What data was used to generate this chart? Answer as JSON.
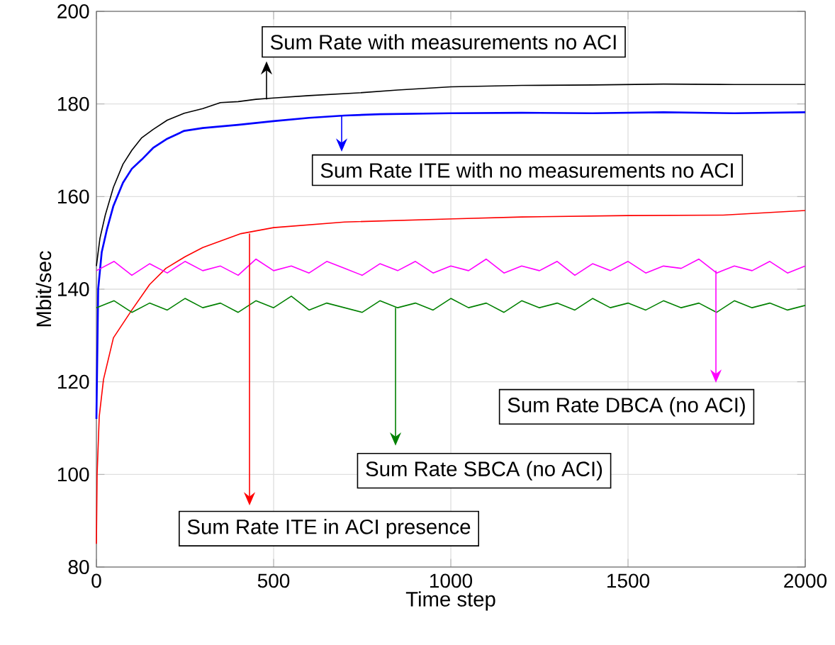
{
  "chart_data": {
    "type": "line",
    "xlabel": "Time step",
    "ylabel": "Mbit/sec",
    "xlim": [
      0,
      2000
    ],
    "ylim": [
      80,
      200
    ],
    "xticks": [
      0,
      500,
      1000,
      1500,
      2000
    ],
    "yticks": [
      80,
      100,
      120,
      140,
      160,
      180,
      200
    ],
    "grid": true,
    "series": [
      {
        "color": "#000000",
        "x": [
          0,
          10,
          25,
          48,
          75,
          100,
          128,
          160,
          200,
          248,
          300,
          350,
          400,
          450,
          500,
          600,
          740,
          850,
          1000,
          1200,
          1400,
          1600,
          1800,
          2000
        ],
        "values": [
          145,
          151,
          156,
          162,
          167,
          170,
          172.7,
          174.5,
          176.5,
          178,
          179,
          180.3,
          180.5,
          181,
          181.3,
          181.8,
          182.4,
          183,
          183.7,
          184,
          184.1,
          184.3,
          184.2,
          184.2
        ]
      },
      {
        "color": "#0000ff",
        "x": [
          0,
          5,
          15,
          30,
          48,
          75,
          100,
          128,
          160,
          200,
          248,
          300,
          400,
          500,
          600,
          700,
          800,
          1000,
          1200,
          1400,
          1600,
          1800,
          2000
        ],
        "values": [
          112,
          140,
          148,
          153,
          158,
          163,
          166,
          168,
          170.5,
          172.5,
          174.2,
          174.8,
          175.5,
          176.3,
          177,
          177.5,
          177.8,
          178,
          178.1,
          178,
          178.2,
          178,
          178.2
        ]
      },
      {
        "color": "#ff0000",
        "x": [
          0,
          2,
          8,
          20,
          48,
          100,
          150,
          196,
          250,
          300,
          408,
          500,
          700,
          1008,
          1200,
          1500,
          1768,
          2000
        ],
        "values": [
          85,
          100,
          112.5,
          120.5,
          129.5,
          135.5,
          141,
          144.5,
          147,
          149,
          152,
          153.3,
          154.5,
          155.2,
          155.6,
          155.9,
          156,
          157
        ]
      },
      {
        "color": "#ff00ff",
        "x": [
          0,
          50,
          100,
          150,
          200,
          250,
          300,
          350,
          400,
          450,
          500,
          550,
          600,
          650,
          700,
          750,
          800,
          850,
          900,
          950,
          1000,
          1050,
          1100,
          1150,
          1200,
          1250,
          1300,
          1350,
          1400,
          1450,
          1500,
          1550,
          1600,
          1650,
          1700,
          1750,
          1800,
          1850,
          1900,
          1950,
          2000
        ],
        "values": [
          144,
          146,
          143,
          145.5,
          143.5,
          146,
          144,
          145,
          143,
          146.5,
          144,
          145,
          143.5,
          146,
          144.5,
          143,
          145.5,
          144,
          146,
          143.5,
          145,
          144,
          146.5,
          143.5,
          145,
          144,
          146,
          143,
          145.5,
          144,
          146,
          143.5,
          145,
          144.5,
          146.5,
          143.5,
          145,
          144,
          146,
          143.5,
          145
        ]
      },
      {
        "color": "#008000",
        "x": [
          0,
          50,
          100,
          150,
          200,
          250,
          300,
          350,
          400,
          450,
          500,
          550,
          600,
          650,
          700,
          750,
          800,
          850,
          900,
          950,
          1000,
          1050,
          1100,
          1150,
          1200,
          1250,
          1300,
          1350,
          1400,
          1450,
          1500,
          1550,
          1600,
          1650,
          1700,
          1750,
          1800,
          1850,
          1900,
          1950,
          2000
        ],
        "values": [
          136,
          137.5,
          135,
          137,
          135.5,
          138,
          136,
          137,
          135,
          137.5,
          136,
          138.5,
          135.5,
          137,
          136,
          135,
          137.5,
          136,
          137,
          135.5,
          138,
          136,
          137,
          135,
          137.5,
          136,
          137,
          135.5,
          138,
          136,
          137,
          135.5,
          137.5,
          136,
          137,
          135,
          137.5,
          136,
          137,
          135.5,
          136.5
        ]
      }
    ],
    "annotations": [
      {
        "text": "Sum Rate with measurements no ACI",
        "x": 480,
        "y": 181
      },
      {
        "text": "Sum Rate ITE with no measurements no ACI",
        "x": 692,
        "y": 177.5
      },
      {
        "text": "Sum Rate ITE in ACI presence",
        "x": 432,
        "y": 152
      },
      {
        "text": "Sum Rate SBCA (no ACI)",
        "x": 844,
        "y": 136
      },
      {
        "text": "Sum Rate DBCA (no ACI)",
        "x": 1748,
        "y": 144
      }
    ]
  }
}
